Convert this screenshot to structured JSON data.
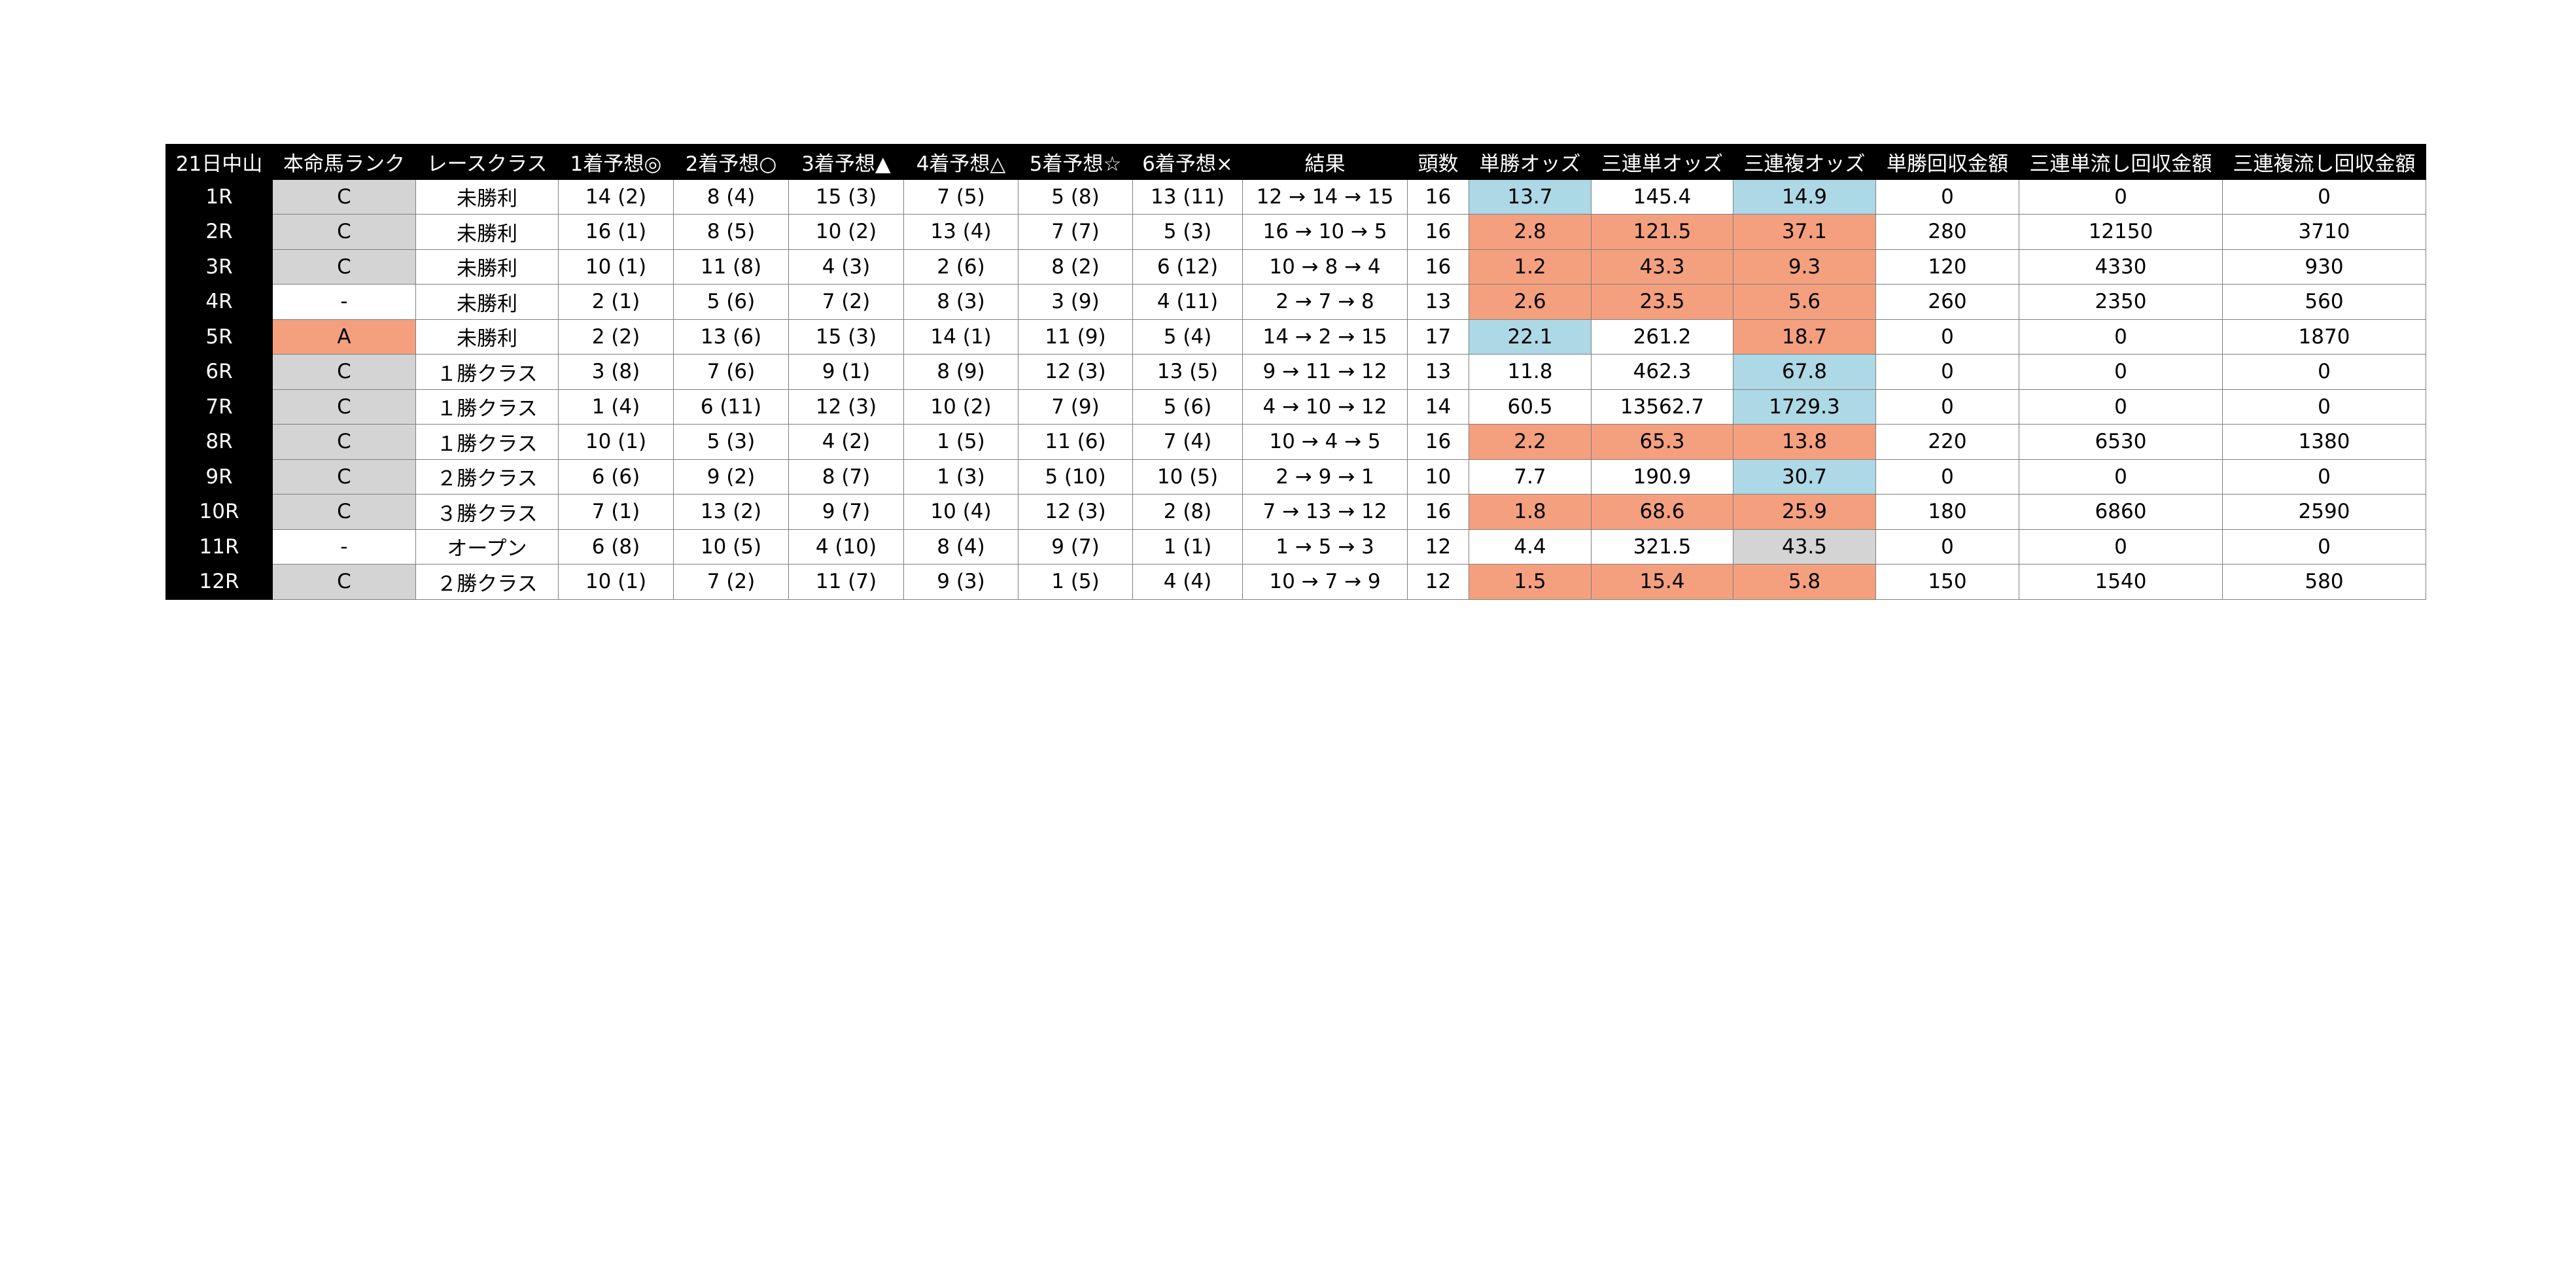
{
  "table": {
    "headers": [
      "21日中山",
      "本命馬ランク",
      "レースクラス",
      "1着予想◎",
      "2着予想○",
      "3着予想▲",
      "4着予想△",
      "5着予想☆",
      "6着予想×",
      "結果",
      "頭数",
      "単勝オッズ",
      "三連単オッズ",
      "三連複オッズ",
      "単勝回収金額",
      "三連単流し回収金額",
      "三連複流し回収金額"
    ],
    "rows": [
      [
        "1R",
        "C",
        "未勝利",
        "14 (2)",
        "8 (4)",
        "15 (3)",
        "7 (5)",
        "5 (8)",
        "13 (11)",
        "12 → 14 → 15",
        "16",
        "13.7",
        "145.4",
        "14.9",
        "0",
        "0",
        "0"
      ],
      [
        "2R",
        "C",
        "未勝利",
        "16 (1)",
        "8 (5)",
        "10 (2)",
        "13 (4)",
        "7 (7)",
        "5 (3)",
        "16 → 10 → 5",
        "16",
        "2.8",
        "121.5",
        "37.1",
        "280",
        "12150",
        "3710"
      ],
      [
        "3R",
        "C",
        "未勝利",
        "10 (1)",
        "11 (8)",
        "4 (3)",
        "2 (6)",
        "8 (2)",
        "6 (12)",
        "10 → 8 → 4",
        "16",
        "1.2",
        "43.3",
        "9.3",
        "120",
        "4330",
        "930"
      ],
      [
        "4R",
        "-",
        "未勝利",
        "2 (1)",
        "5 (6)",
        "7 (2)",
        "8 (3)",
        "3 (9)",
        "4 (11)",
        "2 → 7 → 8",
        "13",
        "2.6",
        "23.5",
        "5.6",
        "260",
        "2350",
        "560"
      ],
      [
        "5R",
        "A",
        "未勝利",
        "2 (2)",
        "13 (6)",
        "15 (3)",
        "14 (1)",
        "11 (9)",
        "5 (4)",
        "14 → 2 → 15",
        "17",
        "22.1",
        "261.2",
        "18.7",
        "0",
        "0",
        "1870"
      ],
      [
        "6R",
        "C",
        "１勝クラス",
        "3 (8)",
        "7 (6)",
        "9 (1)",
        "8 (9)",
        "12 (3)",
        "13 (5)",
        "9 → 11 → 12",
        "13",
        "11.8",
        "462.3",
        "67.8",
        "0",
        "0",
        "0"
      ],
      [
        "7R",
        "C",
        "１勝クラス",
        "1 (4)",
        "6 (11)",
        "12 (3)",
        "10 (2)",
        "7 (9)",
        "5 (6)",
        "4 → 10 → 12",
        "14",
        "60.5",
        "13562.7",
        "1729.3",
        "0",
        "0",
        "0"
      ],
      [
        "8R",
        "C",
        "１勝クラス",
        "10 (1)",
        "5 (3)",
        "4 (2)",
        "1 (5)",
        "11 (6)",
        "7 (4)",
        "10 → 4 → 5",
        "16",
        "2.2",
        "65.3",
        "13.8",
        "220",
        "6530",
        "1380"
      ],
      [
        "9R",
        "C",
        "２勝クラス",
        "6 (6)",
        "9 (2)",
        "8 (7)",
        "1 (3)",
        "5 (10)",
        "10 (5)",
        "2 → 9 → 1",
        "10",
        "7.7",
        "190.9",
        "30.7",
        "0",
        "0",
        "0"
      ],
      [
        "10R",
        "C",
        "３勝クラス",
        "7 (1)",
        "13 (2)",
        "9 (7)",
        "10 (4)",
        "12 (3)",
        "2 (8)",
        "7 → 13 → 12",
        "16",
        "1.8",
        "68.6",
        "25.9",
        "180",
        "6860",
        "2590"
      ],
      [
        "11R",
        "-",
        "オープン",
        "6 (8)",
        "10 (5)",
        "4 (10)",
        "8 (4)",
        "9 (7)",
        "1 (1)",
        "1 → 5 → 3",
        "12",
        "4.4",
        "321.5",
        "43.5",
        "0",
        "0",
        "0"
      ],
      [
        "12R",
        "C",
        "２勝クラス",
        "10 (1)",
        "7 (2)",
        "11 (7)",
        "9 (3)",
        "1 (5)",
        "4 (4)",
        "10 → 7 → 9",
        "12",
        "1.5",
        "15.4",
        "5.8",
        "150",
        "1540",
        "580"
      ]
    ]
  },
  "highlight_colors": {
    "blue": "#add8e6",
    "salmon": "#f4a07f",
    "gray": "#d4d4d4",
    "header_bg": "#000000",
    "header_text": "#ffffff"
  }
}
